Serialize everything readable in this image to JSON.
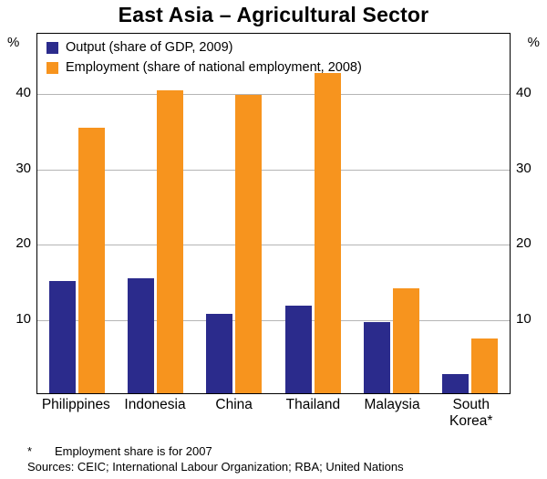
{
  "title": "East Asia – Agricultural Sector",
  "axis": {
    "left_unit": "%",
    "right_unit": "%"
  },
  "footnote": {
    "marker": "*",
    "text": "Employment share is for 2007"
  },
  "sources": "Sources: CEIC; International Labour Organization; RBA; United Nations",
  "chart_data": {
    "type": "bar",
    "title": "East Asia – Agricultural Sector",
    "categories": [
      "Philippines",
      "Indonesia",
      "China",
      "Thailand",
      "Malaysia",
      "South Korea*"
    ],
    "series": [
      {
        "name": "Output (share of GDP, 2009)",
        "color": "#2b2b8c",
        "values": [
          14.9,
          15.3,
          10.6,
          11.6,
          9.5,
          2.5
        ]
      },
      {
        "name": "Employment (share of national employment, 2008)",
        "color": "#f7941e",
        "values": [
          35.3,
          40.3,
          39.6,
          42.5,
          14.0,
          7.3
        ]
      }
    ],
    "xlabel": "",
    "ylabel": "%",
    "ylim": [
      0,
      48
    ],
    "yticks": [
      10,
      20,
      30,
      40
    ],
    "grid": true,
    "legend_position": "top-left",
    "gridline_color": "#b5b5b5"
  }
}
